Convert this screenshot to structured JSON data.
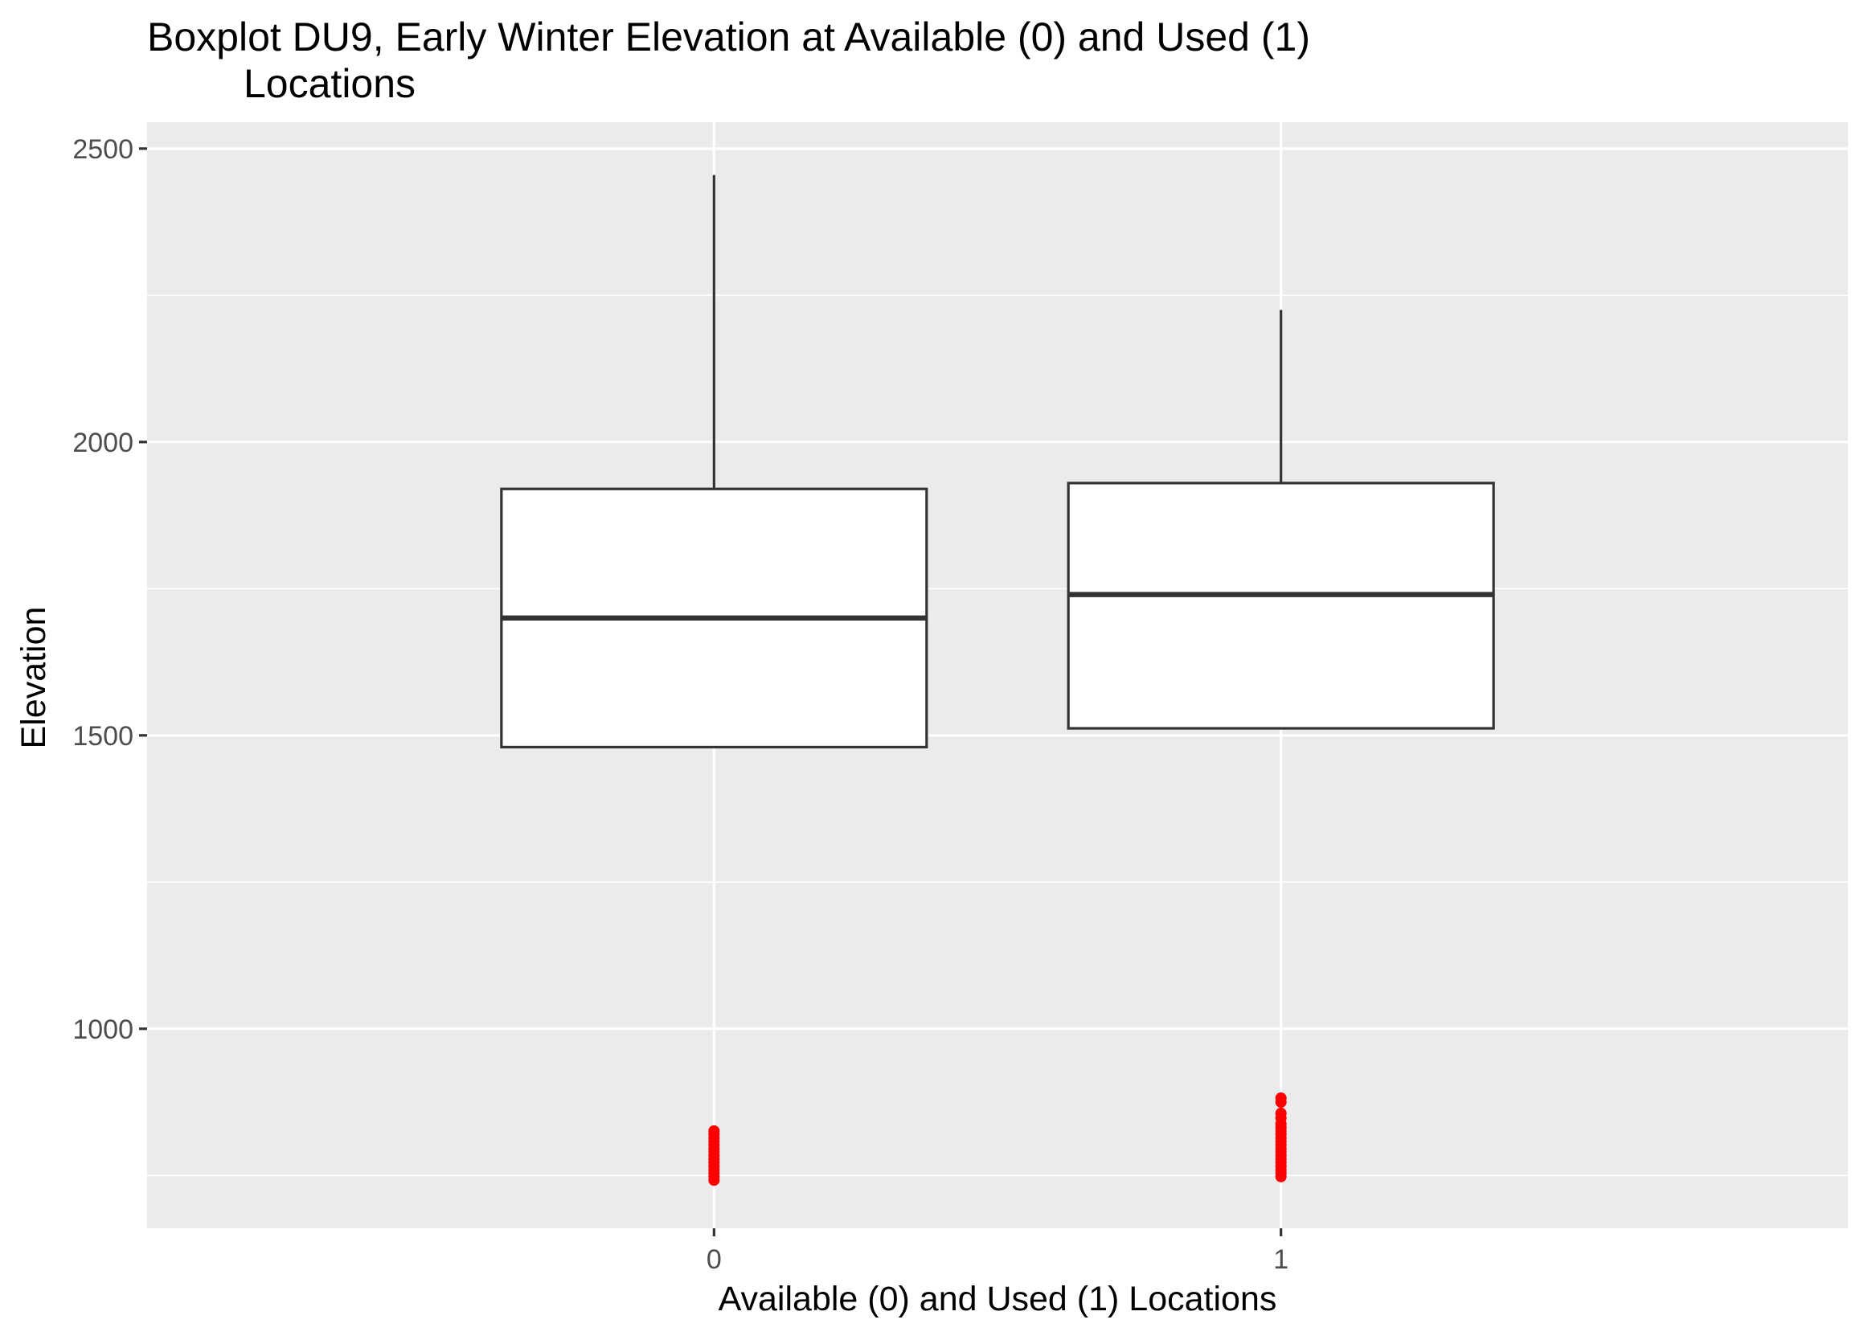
{
  "chart_data": {
    "type": "boxplot",
    "title_lines": [
      "Boxplot DU9, Early Winter Elevation at Available (0) and Used (1)",
      "Locations"
    ],
    "xlabel": "Available (0) and Used (1) Locations",
    "ylabel": "Elevation",
    "categories": [
      "0",
      "1"
    ],
    "ylim": [
      660,
      2545
    ],
    "y_ticks": [
      1000,
      1500,
      2000,
      2500
    ],
    "y_minor_ticks": [
      750,
      1250,
      1750,
      2250
    ],
    "grid": true,
    "boxes": [
      {
        "category": "0",
        "whisker_low": 1480,
        "q1": 1480,
        "median": 1700,
        "q3": 1920,
        "whisker_high": 2455,
        "outliers": [
          742,
          748,
          754,
          760,
          766,
          772,
          778,
          784,
          790,
          796,
          802,
          808,
          814,
          820,
          826
        ]
      },
      {
        "category": "1",
        "whisker_low": 1512,
        "q1": 1512,
        "median": 1740,
        "q3": 1930,
        "whisker_high": 2225,
        "outliers": [
          748,
          754,
          760,
          766,
          772,
          778,
          784,
          790,
          796,
          802,
          808,
          814,
          820,
          826,
          832,
          838,
          848,
          856,
          875,
          882
        ]
      }
    ],
    "colors": {
      "panel_background": "#ebebeb",
      "grid_line": "#ffffff",
      "box_fill": "#ffffff",
      "box_stroke": "#333333",
      "outlier": "#ff0000"
    }
  }
}
